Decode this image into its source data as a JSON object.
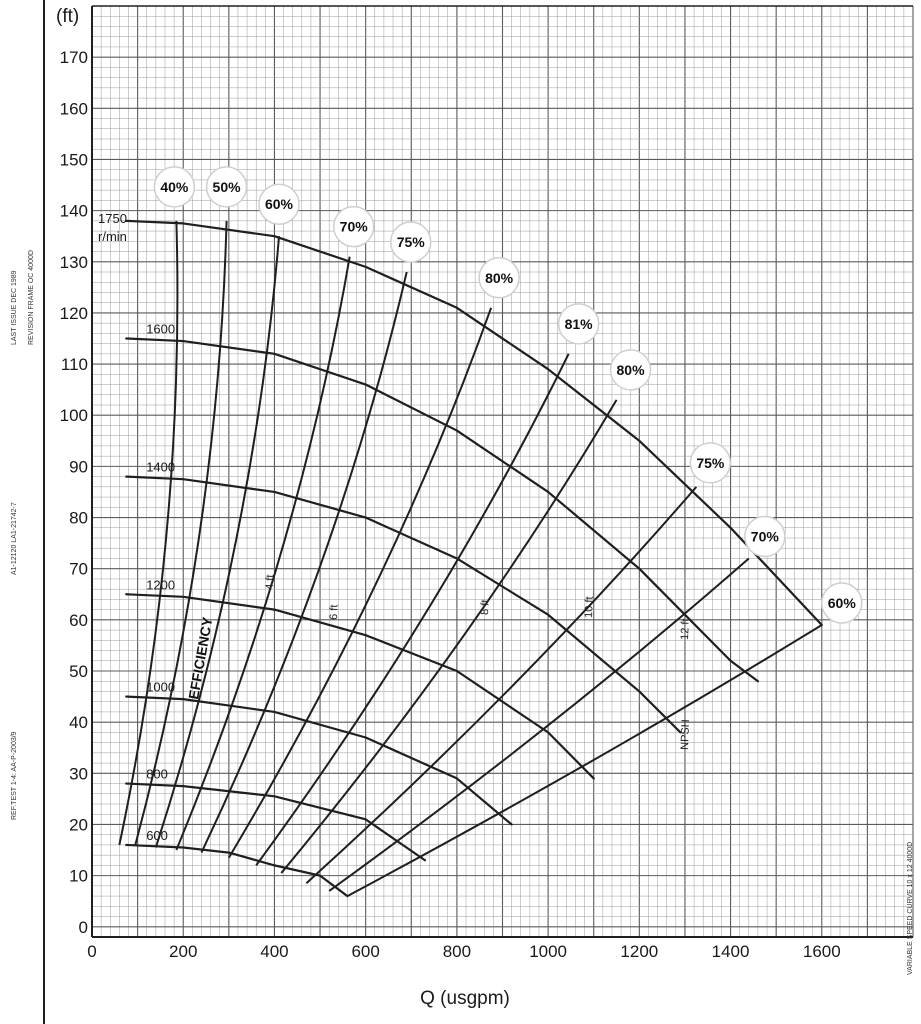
{
  "colors": {
    "background": "#ffffff",
    "grid_major": "#5a5a5a",
    "grid_minor": "#9a9a9a",
    "ink": "#1f1f1f"
  },
  "chart_data": {
    "type": "line",
    "title": "",
    "ylabel": "(ft)",
    "xlabel": "Q (usgpm)",
    "xlim": [
      0,
      1800
    ],
    "ylim": [
      -2,
      180
    ],
    "x_ticks": [
      "0",
      "200",
      "400",
      "600",
      "800",
      "1000",
      "1200",
      "1400",
      "1600"
    ],
    "y_ticks": [
      "0",
      "10",
      "20",
      "30",
      "40",
      "50",
      "60",
      "70",
      "80",
      "90",
      "100",
      "110",
      "120",
      "130",
      "140",
      "150",
      "160",
      "170"
    ],
    "grid": true,
    "speed_label_1750": [
      "1750",
      "r/min"
    ],
    "series": [
      {
        "name": "1750",
        "x": [
          75,
          200,
          400,
          600,
          800,
          1000,
          1200,
          1400,
          1600
        ],
        "y": [
          138,
          137.5,
          135,
          129,
          121,
          109,
          95,
          78,
          59
        ]
      },
      {
        "name": "1600",
        "x": [
          75,
          200,
          400,
          600,
          800,
          1000,
          1200,
          1400,
          1460
        ],
        "y": [
          115,
          114.5,
          112,
          106,
          97,
          85,
          70,
          52,
          48
        ]
      },
      {
        "name": "1400",
        "x": [
          75,
          200,
          400,
          600,
          800,
          1000,
          1200,
          1290
        ],
        "y": [
          88,
          87.5,
          85,
          80,
          72,
          61,
          46,
          38
        ]
      },
      {
        "name": "1200",
        "x": [
          75,
          200,
          400,
          600,
          800,
          1000,
          1100
        ],
        "y": [
          65,
          64.5,
          62,
          57,
          50,
          38,
          29
        ]
      },
      {
        "name": "1000",
        "x": [
          75,
          200,
          400,
          600,
          800,
          920
        ],
        "y": [
          45,
          44.5,
          42,
          37,
          29,
          20
        ]
      },
      {
        "name": "800",
        "x": [
          75,
          200,
          400,
          600,
          730
        ],
        "y": [
          28,
          27.5,
          25.5,
          21,
          13
        ]
      },
      {
        "name": "600",
        "x": [
          75,
          200,
          300,
          400,
          500,
          560
        ],
        "y": [
          16,
          15.5,
          14.5,
          12,
          10,
          6
        ]
      }
    ],
    "efficiency_lines": [
      {
        "label": "40%",
        "x": [
          60,
          185
        ],
        "y": [
          16,
          138
        ]
      },
      {
        "label": "50%",
        "x": [
          95,
          295
        ],
        "y": [
          16,
          138
        ]
      },
      {
        "label": "60%",
        "x": [
          140,
          410
        ],
        "y": [
          15.5,
          135
        ]
      },
      {
        "label": "70%",
        "x": [
          185,
          565
        ],
        "y": [
          15,
          131
        ]
      },
      {
        "label": "75%",
        "x": [
          240,
          690
        ],
        "y": [
          14.5,
          128
        ]
      },
      {
        "label": "80%",
        "x": [
          300,
          875
        ],
        "y": [
          13.5,
          121
        ]
      },
      {
        "label": "81%",
        "x": [
          360,
          1045
        ],
        "y": [
          12,
          112
        ]
      },
      {
        "label": "80%",
        "x": [
          415,
          1150
        ],
        "y": [
          10.5,
          103
        ]
      },
      {
        "label": "75%",
        "x": [
          470,
          1325
        ],
        "y": [
          8.5,
          86
        ]
      },
      {
        "label": "70%",
        "x": [
          520,
          1440
        ],
        "y": [
          7,
          72
        ]
      },
      {
        "label": "60%",
        "x": [
          560,
          1600
        ],
        "y": [
          6,
          59
        ]
      }
    ],
    "efficiency_label_text": "EFFICIENCY",
    "npsh_label_text": "NPSH",
    "npsh_values": [
      "4 ft",
      "6 ft",
      "8 ft",
      "10 ft",
      "10 ft",
      "12 ft"
    ],
    "bep_label": "81%"
  },
  "side_text": {
    "left_top": "LAST ISSUE DEC 1989",
    "left_top2": "REVISION FRAME OC 4000D",
    "left_mid": "A1-12120 LA1-21742-7",
    "left_bottom": "REF.TEST 1-4: AA-P-2003/9",
    "right_bottom": "VARIABLE SPEED CURVE 10 x 12 4000D"
  }
}
